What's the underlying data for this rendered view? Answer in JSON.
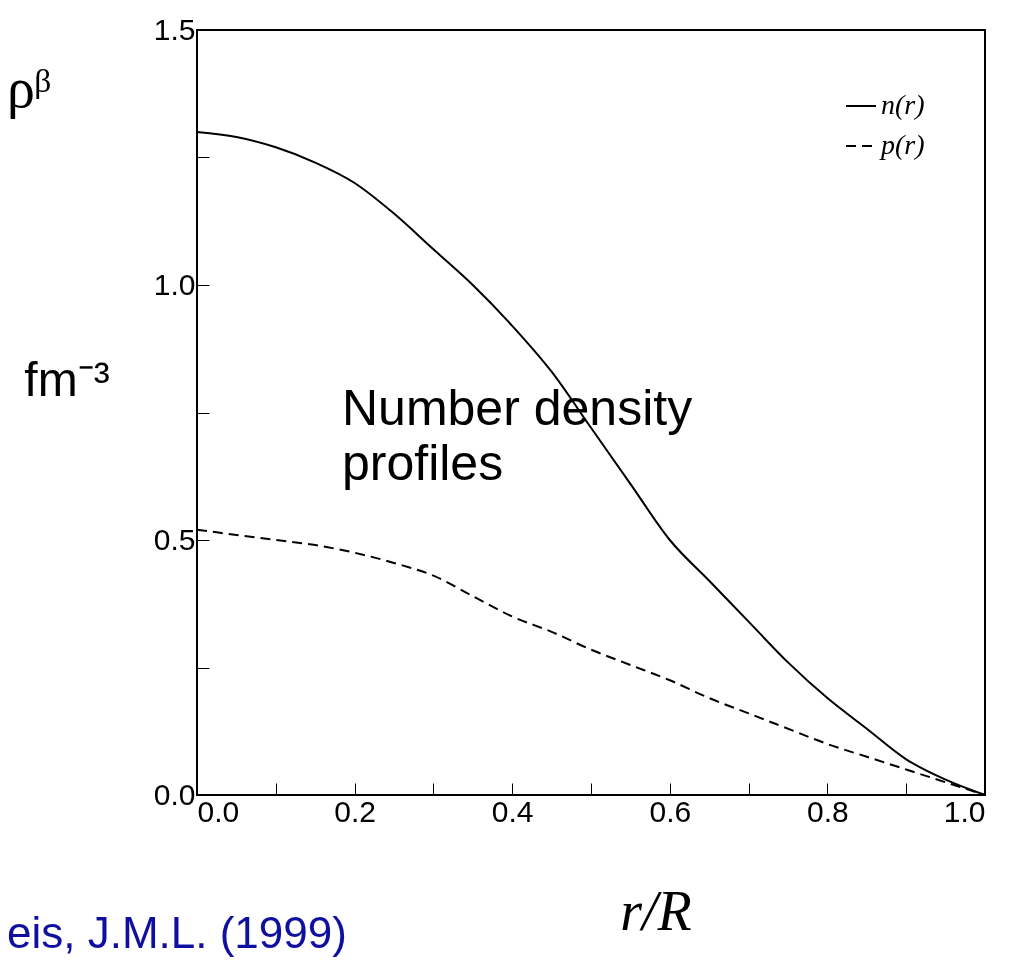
{
  "chart_data": {
    "type": "line",
    "xlabel": "r/R",
    "ylabel": "fm⁻³",
    "annotations": [
      "ρᵝ",
      "Number density profiles",
      "eis, J.M.L. (1999)"
    ],
    "x": [
      0,
      0.05,
      0.1,
      0.15,
      0.2,
      0.25,
      0.3,
      0.35,
      0.4,
      0.45,
      0.5,
      0.55,
      0.6,
      0.65,
      0.7,
      0.75,
      0.8,
      0.85,
      0.9,
      0.95,
      1.0
    ],
    "series": [
      {
        "name": "n(r)",
        "color": "#000000",
        "line_style": "solid",
        "values": [
          1.3,
          1.29,
          1.27,
          1.24,
          1.2,
          1.14,
          1.07,
          1.0,
          0.92,
          0.83,
          0.72,
          0.61,
          0.5,
          0.42,
          0.34,
          0.26,
          0.19,
          0.13,
          0.07,
          0.03,
          0
        ]
      },
      {
        "name": "p(r)",
        "color": "#000000",
        "line_style": "dashed",
        "values": [
          0.52,
          0.51,
          0.5,
          0.49,
          0.475,
          0.455,
          0.43,
          0.39,
          0.35,
          0.32,
          0.285,
          0.255,
          0.225,
          0.19,
          0.16,
          0.13,
          0.1,
          0.075,
          0.05,
          0.025,
          0
        ]
      }
    ],
    "xlim": [
      0,
      1
    ],
    "ylim": [
      0,
      1.5
    ],
    "xticks": [
      {
        "value": 0,
        "label": "0.0"
      },
      {
        "value": 0.1,
        "label": null
      },
      {
        "value": 0.2,
        "label": "0.2"
      },
      {
        "value": 0.3,
        "label": null
      },
      {
        "value": 0.4,
        "label": "0.4"
      },
      {
        "value": 0.5,
        "label": null
      },
      {
        "value": 0.6,
        "label": "0.6"
      },
      {
        "value": 0.7,
        "label": null
      },
      {
        "value": 0.8,
        "label": "0.8"
      },
      {
        "value": 0.9,
        "label": null
      },
      {
        "value": 1,
        "label": "1.0"
      }
    ],
    "yticks": [
      {
        "value": 0,
        "label": "0.0"
      },
      {
        "value": 0.25,
        "label": null
      },
      {
        "value": 0.5,
        "label": "0.5"
      },
      {
        "value": 0.75,
        "label": null
      },
      {
        "value": 1,
        "label": "1.0"
      },
      {
        "value": 1.25,
        "label": null
      },
      {
        "value": 1.5,
        "label": "1.5"
      }
    ],
    "legend": "top right",
    "grid": false
  }
}
